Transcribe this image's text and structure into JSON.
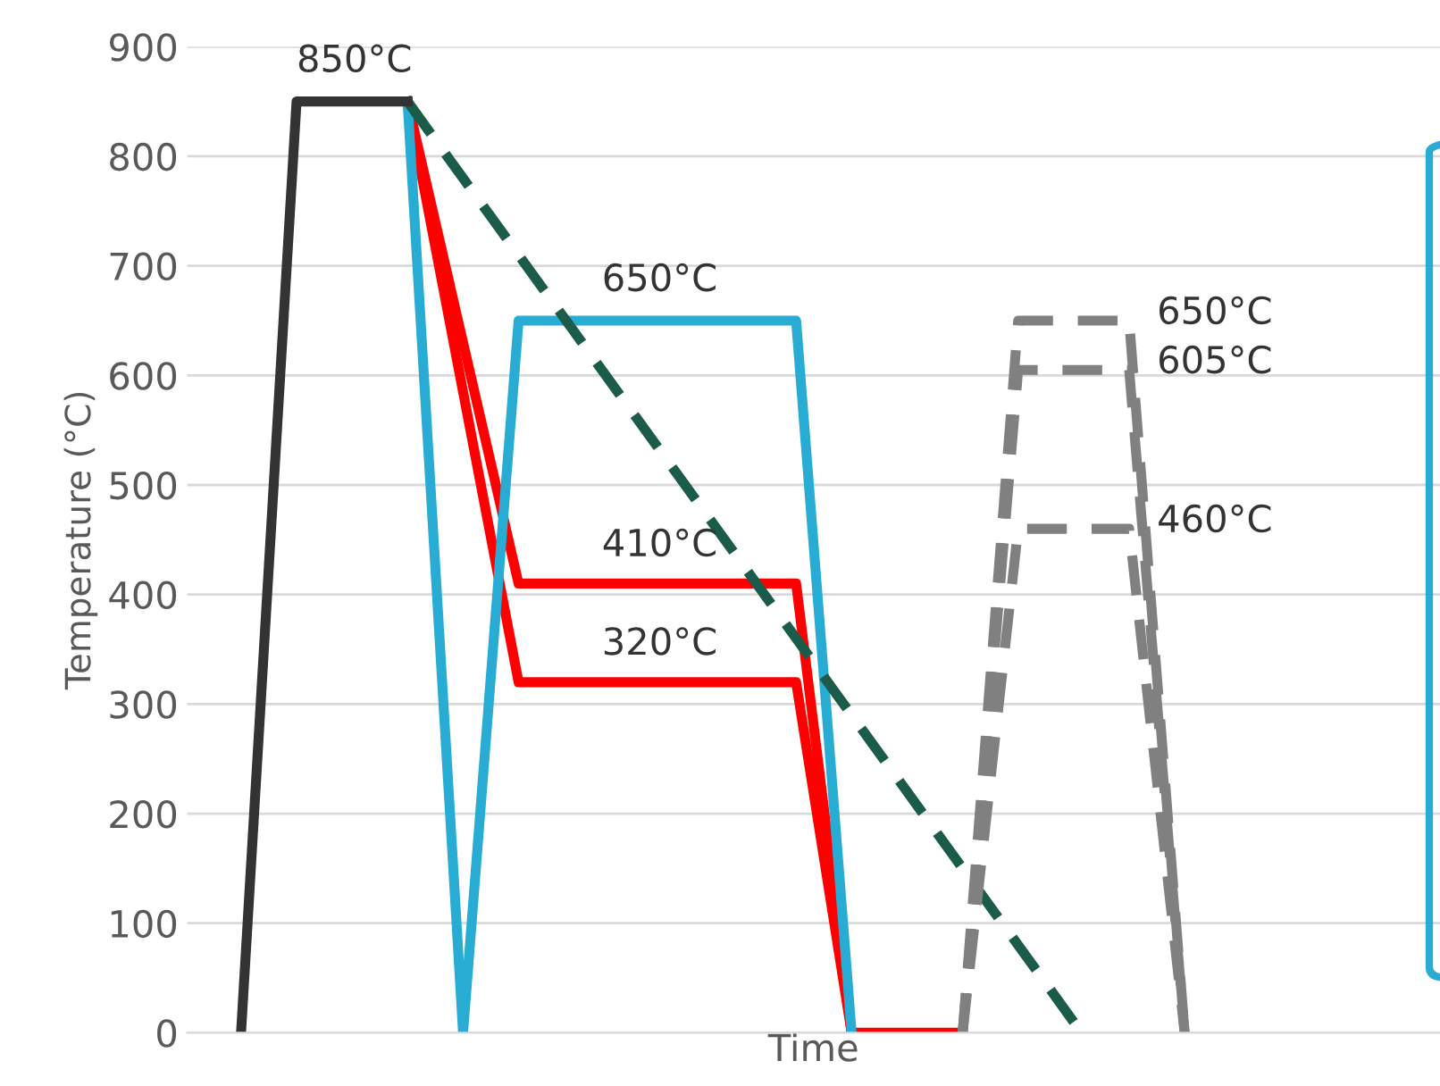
{
  "chart_data": {
    "type": "line",
    "xlabel": "Time",
    "ylabel": "Temperature (°C)",
    "categories": [
      null,
      null,
      null,
      null,
      null,
      null,
      null,
      null,
      null,
      null,
      null,
      null,
      null,
      null,
      null,
      null,
      null,
      null
    ],
    "ylim": [
      0,
      900
    ],
    "yticks": [
      0,
      100,
      200,
      300,
      400,
      500,
      600,
      700,
      800,
      900
    ],
    "tick_labels": "y",
    "grid": "y",
    "marker": "none",
    "series": [
      {
        "color": "#ff0000",
        "values": [
          null,
          null,
          null,
          850,
          630,
          410,
          410,
          410,
          410,
          410,
          410,
          0,
          0,
          0,
          null,
          null,
          null,
          null
        ]
      },
      {
        "color": "#ff0000",
        "values": [
          null,
          null,
          null,
          850,
          585,
          320,
          320,
          320,
          320,
          320,
          320,
          0,
          null,
          null,
          null,
          null,
          null,
          null
        ]
      },
      {
        "color": "#29acd3",
        "values": [
          null,
          null,
          null,
          850,
          0,
          650,
          650,
          650,
          650,
          650,
          650,
          0,
          null,
          null,
          null,
          null,
          null,
          null
        ]
      },
      {
        "color": "#1a5b4a",
        "line_style": "dashed",
        "values": [
          null,
          null,
          null,
          850,
          780,
          710,
          640,
          570,
          500,
          430,
          360,
          290,
          220,
          150,
          80,
          10,
          null,
          null
        ]
      },
      {
        "color": "#808080",
        "line_style": "dashed",
        "values": [
          null,
          null,
          null,
          null,
          null,
          null,
          null,
          null,
          null,
          null,
          null,
          null,
          null,
          0,
          650,
          650,
          650,
          0
        ]
      },
      {
        "color": "#808080",
        "line_style": "dashed",
        "values": [
          null,
          null,
          null,
          null,
          null,
          null,
          null,
          null,
          null,
          null,
          null,
          null,
          null,
          0,
          605,
          605,
          605,
          0
        ]
      },
      {
        "color": "#808080",
        "line_style": "dashed",
        "values": [
          null,
          null,
          null,
          null,
          null,
          null,
          null,
          null,
          null,
          null,
          null,
          null,
          null,
          0,
          460,
          460,
          460,
          0
        ]
      },
      {
        "color": "#333333",
        "values": [
          0,
          850,
          850,
          850,
          null,
          null,
          null,
          null,
          null,
          null,
          null,
          null,
          null,
          null,
          null,
          null,
          null,
          null
        ]
      }
    ],
    "annotations": [
      "850°C",
      "650°C",
      "410°C",
      "320°C",
      "650°C",
      "605°C",
      "460°C"
    ]
  }
}
